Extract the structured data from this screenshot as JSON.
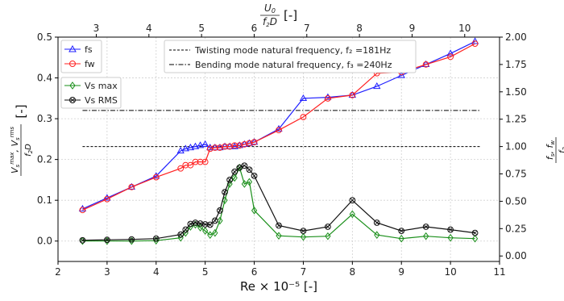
{
  "chart_data": {
    "type": "line",
    "xlabel": "Re × 10⁻⁵ [-]",
    "ylabel_left": "(Vs^max, Vs^rms)/(f2 D) [-]",
    "ylabel_right": "fs, fw / f2",
    "xlabel_top": "U0/(f2 D) [-]",
    "xlim": [
      2,
      11
    ],
    "ylim_left": [
      -0.05,
      0.5
    ],
    "ylim_right": [
      -0.05,
      2.0
    ],
    "x_ticks": [
      "2",
      "3",
      "4",
      "5",
      "6",
      "7",
      "8",
      "9",
      "10",
      "11"
    ],
    "top_ticks": [
      "3",
      "4",
      "5",
      "6",
      "7",
      "8",
      "9",
      "10"
    ],
    "left_ticks": [
      "0.0",
      "0.1",
      "0.2",
      "0.3",
      "0.4",
      "0.5"
    ],
    "right_ticks": [
      "0.00",
      "0.25",
      "0.50",
      "0.75",
      "1.00",
      "1.25",
      "1.50",
      "1.75",
      "2.00"
    ],
    "grid": true,
    "series": [
      {
        "name": "fs",
        "axis": "right",
        "color": "#1f1fff",
        "marker": "triangle",
        "x": [
          2.5,
          3.0,
          3.5,
          4.0,
          4.5,
          4.6,
          4.7,
          4.8,
          4.9,
          5.0,
          5.1,
          5.2,
          5.3,
          5.4,
          5.5,
          5.6,
          5.7,
          5.8,
          5.9,
          6.0,
          6.5,
          7.0,
          7.5,
          8.0,
          8.5,
          9.0,
          9.5,
          10.0,
          10.5
        ],
        "values": [
          0.43,
          0.53,
          0.63,
          0.73,
          0.96,
          0.98,
          0.99,
          1.0,
          1.01,
          1.02,
          0.99,
          0.99,
          0.99,
          1.0,
          1.0,
          1.0,
          1.01,
          1.02,
          1.03,
          1.04,
          1.16,
          1.44,
          1.45,
          1.47,
          1.55,
          1.65,
          1.75,
          1.85,
          1.96
        ]
      },
      {
        "name": "fw",
        "axis": "right",
        "color": "#ff2020",
        "marker": "circle",
        "x": [
          2.5,
          3.0,
          3.5,
          4.0,
          4.5,
          4.6,
          4.7,
          4.8,
          4.9,
          5.0,
          5.1,
          5.2,
          5.3,
          5.4,
          5.5,
          5.6,
          5.7,
          5.8,
          5.9,
          6.0,
          6.5,
          7.0,
          7.5,
          8.0,
          8.5,
          9.0,
          9.5,
          10.0,
          10.5
        ],
        "values": [
          0.42,
          0.52,
          0.63,
          0.72,
          0.8,
          0.83,
          0.83,
          0.86,
          0.86,
          0.86,
          0.98,
          0.99,
          0.99,
          1.0,
          1.0,
          1.01,
          1.01,
          1.02,
          1.03,
          1.04,
          1.15,
          1.27,
          1.44,
          1.47,
          1.67,
          1.68,
          1.75,
          1.82,
          1.94
        ]
      },
      {
        "name": "Vs max",
        "axis": "left",
        "color": "#1a8f1a",
        "marker": "diamond",
        "x": [
          2.5,
          3.0,
          3.5,
          4.0,
          4.5,
          4.6,
          4.7,
          4.8,
          4.9,
          5.0,
          5.1,
          5.2,
          5.3,
          5.4,
          5.5,
          5.6,
          5.7,
          5.8,
          5.9,
          6.0,
          6.5,
          7.0,
          7.5,
          8.0,
          8.5,
          9.0,
          9.5,
          10.0,
          10.5
        ],
        "values": [
          0.0,
          0.0,
          0.0,
          0.001,
          0.008,
          0.02,
          0.035,
          0.04,
          0.033,
          0.025,
          0.015,
          0.02,
          0.05,
          0.1,
          0.14,
          0.155,
          0.18,
          0.14,
          0.145,
          0.075,
          0.013,
          0.01,
          0.012,
          0.066,
          0.015,
          0.006,
          0.012,
          0.008,
          0.006
        ]
      },
      {
        "name": "Vs RMS",
        "axis": "left",
        "color": "#111111",
        "marker": "crosscircle",
        "x": [
          2.5,
          3.0,
          3.5,
          4.0,
          4.5,
          4.6,
          4.7,
          4.8,
          4.9,
          5.0,
          5.1,
          5.2,
          5.3,
          5.4,
          5.5,
          5.6,
          5.7,
          5.8,
          5.9,
          6.0,
          6.5,
          7.0,
          7.5,
          8.0,
          8.5,
          9.0,
          9.5,
          10.0,
          10.5
        ],
        "values": [
          0.002,
          0.003,
          0.004,
          0.006,
          0.016,
          0.028,
          0.042,
          0.045,
          0.043,
          0.041,
          0.04,
          0.05,
          0.075,
          0.12,
          0.15,
          0.17,
          0.18,
          0.185,
          0.175,
          0.16,
          0.038,
          0.025,
          0.035,
          0.1,
          0.045,
          0.025,
          0.035,
          0.028,
          0.02
        ]
      }
    ],
    "reference_lines": [
      {
        "label": "Twisting mode natural frequency, f₂ =181Hz",
        "axis": "right",
        "y": 1.0,
        "style": "dashed",
        "x_range": [
          2.5,
          10.6
        ]
      },
      {
        "label": "Bending mode natural frequency, f₃ =240Hz",
        "axis": "right",
        "y": 1.33,
        "style": "dashdot",
        "x_range": [
          2.5,
          10.6
        ]
      }
    ]
  }
}
